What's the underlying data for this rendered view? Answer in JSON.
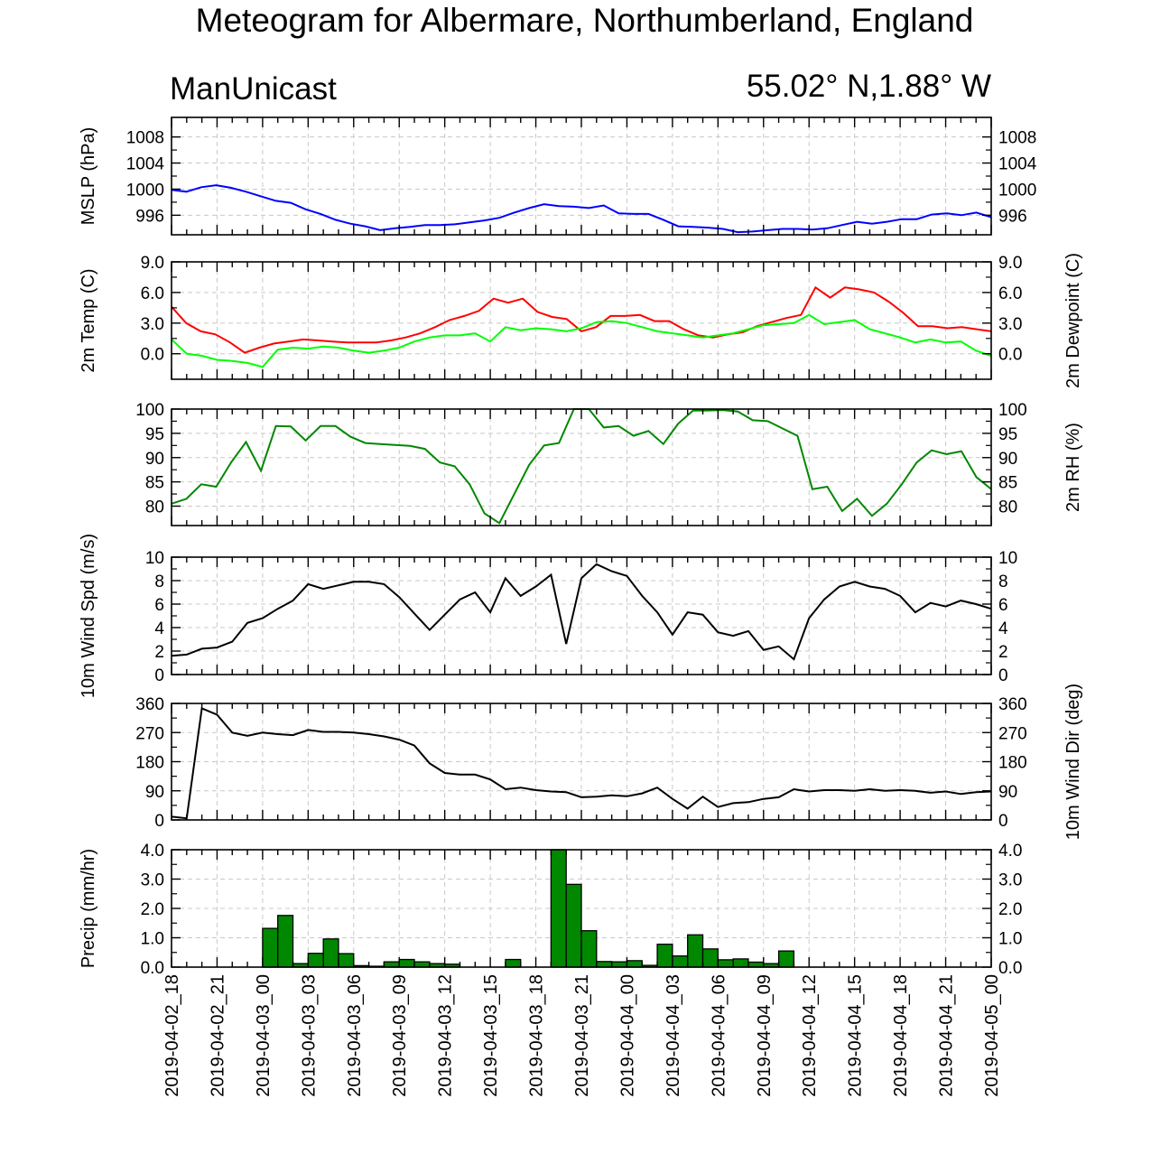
{
  "title": "Meteogram for Albermare, Northumberland, England",
  "model": "ManUnicast",
  "location": "55.02° N,1.88° W",
  "colors": {
    "mslp": "#0000ff",
    "temp": "#ff0000",
    "dewpoint": "#00ff00",
    "rh": "#008800",
    "wind": "#000000",
    "precip_bar": "#008800"
  },
  "chart_data": {
    "type": "meteogram",
    "grid": true,
    "time": {
      "start": "2019-04-02 18:00",
      "end": "2019-04-05 00:00",
      "step_hours": 1,
      "tick_labels": [
        "2019-04-02_18",
        "2019-04-02_21",
        "2019-04-03_00",
        "2019-04-03_03",
        "2019-04-03_06",
        "2019-04-03_09",
        "2019-04-03_12",
        "2019-04-03_15",
        "2019-04-03_18",
        "2019-04-03_21",
        "2019-04-04_00",
        "2019-04-04_03",
        "2019-04-04_06",
        "2019-04-04_09",
        "2019-04-04_12",
        "2019-04-04_15",
        "2019-04-04_18",
        "2019-04-04_21",
        "2019-04-05_00"
      ]
    },
    "panels": [
      {
        "id": "mslp",
        "type": "line",
        "ylabel_left": "MSLP (hPa)",
        "ylabel_right": "",
        "ylim": [
          993,
          1011
        ],
        "ticks": [
          996,
          1000,
          1004,
          1008
        ],
        "tick_labels": [
          "996",
          "1000",
          "1004",
          "1008"
        ],
        "right_tick_labels": true,
        "series": [
          {
            "color_key": "mslp",
            "values": [
              999.9,
              999.6,
              1000.3,
              1000.6,
              1000.2,
              999.6,
              998.9,
              998.2,
              997.9,
              996.9,
              996.2,
              995.3,
              994.7,
              994.3,
              993.7,
              994.0,
              994.2,
              994.5,
              994.5,
              994.6,
              994.9,
              995.2,
              995.6,
              996.4,
              997.1,
              997.7,
              997.4,
              997.3,
              997.1,
              997.5,
              996.3,
              996.2,
              996.2,
              995.3,
              994.3,
              994.2,
              994.1,
              993.9,
              993.4,
              993.5,
              993.7,
              993.9,
              993.9,
              993.8,
              994.0,
              994.5,
              995.0,
              994.7,
              995.0,
              995.4,
              995.4,
              996.1,
              996.3,
              996.0,
              996.4,
              995.7
            ]
          }
        ]
      },
      {
        "id": "temp",
        "type": "line",
        "ylabel_left": "2m Temp (C)",
        "ylabel_right": "2m Dewpoint (C)",
        "ylim": [
          -2.5,
          9
        ],
        "ticks": [
          0,
          3,
          6,
          9
        ],
        "tick_labels": [
          "0.0",
          "3.0",
          "6.0",
          "9.0"
        ],
        "right_tick_labels": true,
        "series": [
          {
            "color_key": "temp",
            "values": [
              4.6,
              3.0,
              2.2,
              1.9,
              1.1,
              0.1,
              0.6,
              1.0,
              1.2,
              1.4,
              1.3,
              1.2,
              1.1,
              1.1,
              1.1,
              1.3,
              1.6,
              2.0,
              2.6,
              3.3,
              3.7,
              4.2,
              5.4,
              5.0,
              5.4,
              4.1,
              3.6,
              3.4,
              2.2,
              2.6,
              3.7,
              3.7,
              3.8,
              3.2,
              3.2,
              2.4,
              1.8,
              1.6,
              1.9,
              2.1,
              2.7,
              3.1,
              3.5,
              3.8,
              6.5,
              5.5,
              6.5,
              6.3,
              6.0,
              5.1,
              4.0,
              2.7,
              2.7,
              2.5,
              2.6,
              2.4,
              2.2
            ]
          },
          {
            "color_key": "dewpoint",
            "values": [
              1.4,
              0.0,
              -0.2,
              -0.6,
              -0.7,
              -0.9,
              -1.3,
              0.4,
              0.6,
              0.5,
              0.7,
              0.6,
              0.3,
              0.1,
              0.3,
              0.6,
              1.2,
              1.6,
              1.8,
              1.8,
              2.0,
              1.2,
              2.6,
              2.3,
              2.5,
              2.4,
              2.2,
              2.5,
              3.1,
              3.2,
              3.0,
              2.6,
              2.2,
              2.0,
              1.8,
              1.6,
              1.8,
              2.0,
              2.4,
              2.8,
              2.9,
              3.0,
              3.8,
              2.9,
              3.1,
              3.3,
              2.4,
              2.0,
              1.6,
              1.1,
              1.4,
              1.1,
              1.2,
              0.3,
              -0.2
            ]
          }
        ]
      },
      {
        "id": "rh",
        "type": "line",
        "ylabel_left": "",
        "ylabel_right": "2m RH (%)",
        "ylim": [
          76,
          100
        ],
        "ticks": [
          80,
          85,
          90,
          95,
          100
        ],
        "tick_labels": [
          "80",
          "85",
          "90",
          "95",
          "100"
        ],
        "right_tick_labels": true,
        "series": [
          {
            "color_key": "rh",
            "values": [
              80.5,
              81.5,
              84.5,
              84.0,
              89.0,
              93.2,
              87.3,
              96.5,
              96.4,
              93.5,
              96.5,
              96.5,
              94.3,
              93.0,
              92.8,
              92.6,
              92.4,
              91.8,
              89.0,
              88.2,
              84.5,
              78.5,
              76.5,
              82.5,
              88.5,
              92.5,
              93.0,
              100.0,
              100.0,
              96.2,
              96.5,
              94.5,
              95.5,
              92.8,
              97.0,
              99.7,
              99.7,
              99.8,
              99.5,
              97.7,
              97.5,
              96.0,
              94.5,
              83.5,
              84.0,
              79.0,
              81.5,
              78.0,
              80.5,
              84.5,
              89.0,
              91.5,
              90.7,
              91.3,
              86.0,
              83.5
            ]
          }
        ]
      },
      {
        "id": "wspd",
        "type": "line",
        "ylabel_left": "10m Wind Spd (m/s)",
        "ylabel_right": "",
        "ylim": [
          0,
          10
        ],
        "ticks": [
          0,
          2,
          4,
          6,
          8,
          10
        ],
        "tick_labels": [
          "0",
          "2",
          "4",
          "6",
          "8",
          "10"
        ],
        "right_tick_labels": true,
        "series": [
          {
            "color_key": "wind",
            "values": [
              1.6,
              1.7,
              2.2,
              2.3,
              2.8,
              4.4,
              4.8,
              5.6,
              6.3,
              7.7,
              7.3,
              7.6,
              7.9,
              7.9,
              7.7,
              6.6,
              5.2,
              3.8,
              5.1,
              6.4,
              7.0,
              5.3,
              8.2,
              6.7,
              7.5,
              8.5,
              2.6,
              8.2,
              9.4,
              8.8,
              8.4,
              6.7,
              5.3,
              3.4,
              5.3,
              5.1,
              3.6,
              3.3,
              3.7,
              2.1,
              2.4,
              1.3,
              4.8,
              6.4,
              7.5,
              7.9,
              7.5,
              7.3,
              6.7,
              5.3,
              6.1,
              5.8,
              6.3,
              6.0,
              5.6
            ]
          }
        ]
      },
      {
        "id": "wdir",
        "type": "line",
        "ylabel_left": "",
        "ylabel_right": "10m Wind Dir (deg)",
        "ylim": [
          0,
          360
        ],
        "ticks": [
          0,
          90,
          180,
          270,
          360
        ],
        "tick_labels": [
          "0",
          "90",
          "180",
          "270",
          "360"
        ],
        "right_tick_labels": true,
        "series": [
          {
            "color_key": "wind",
            "values": [
              10,
              5,
              345,
              325,
              270,
              260,
              270,
              265,
              262,
              278,
              272,
              272,
              270,
              265,
              258,
              248,
              230,
              175,
              145,
              140,
              140,
              125,
              95,
              100,
              92,
              88,
              86,
              70,
              72,
              76,
              73,
              82,
              100,
              65,
              35,
              72,
              40,
              52,
              55,
              65,
              70,
              95,
              88,
              92,
              92,
              90,
              95,
              90,
              92,
              90,
              84,
              88,
              80,
              86,
              88
            ]
          }
        ]
      },
      {
        "id": "precip",
        "type": "bar",
        "ylabel_left": "Precip (mm/hr)",
        "ylabel_right": "",
        "ylim": [
          0,
          4
        ],
        "ticks": [
          0,
          1,
          2,
          3,
          4
        ],
        "tick_labels": [
          "0.0",
          "1.0",
          "2.0",
          "3.0",
          "4.0"
        ],
        "right_tick_labels": true,
        "series": [
          {
            "color_key": "precip_bar",
            "values": [
              0,
              0,
              0,
              0,
              0,
              0,
              1.32,
              1.76,
              0.12,
              0.47,
              0.96,
              0.46,
              0.05,
              0.03,
              0.18,
              0.26,
              0.18,
              0.12,
              0.1,
              0,
              0,
              0,
              0.26,
              0,
              0,
              4.0,
              2.82,
              1.24,
              0.19,
              0.18,
              0.22,
              0.06,
              0.78,
              0.38,
              1.1,
              0.62,
              0.25,
              0.28,
              0.17,
              0.12,
              0.55,
              0,
              0,
              0,
              0,
              0,
              0,
              0,
              0,
              0,
              0,
              0,
              0,
              0,
              0
            ]
          }
        ]
      }
    ]
  }
}
